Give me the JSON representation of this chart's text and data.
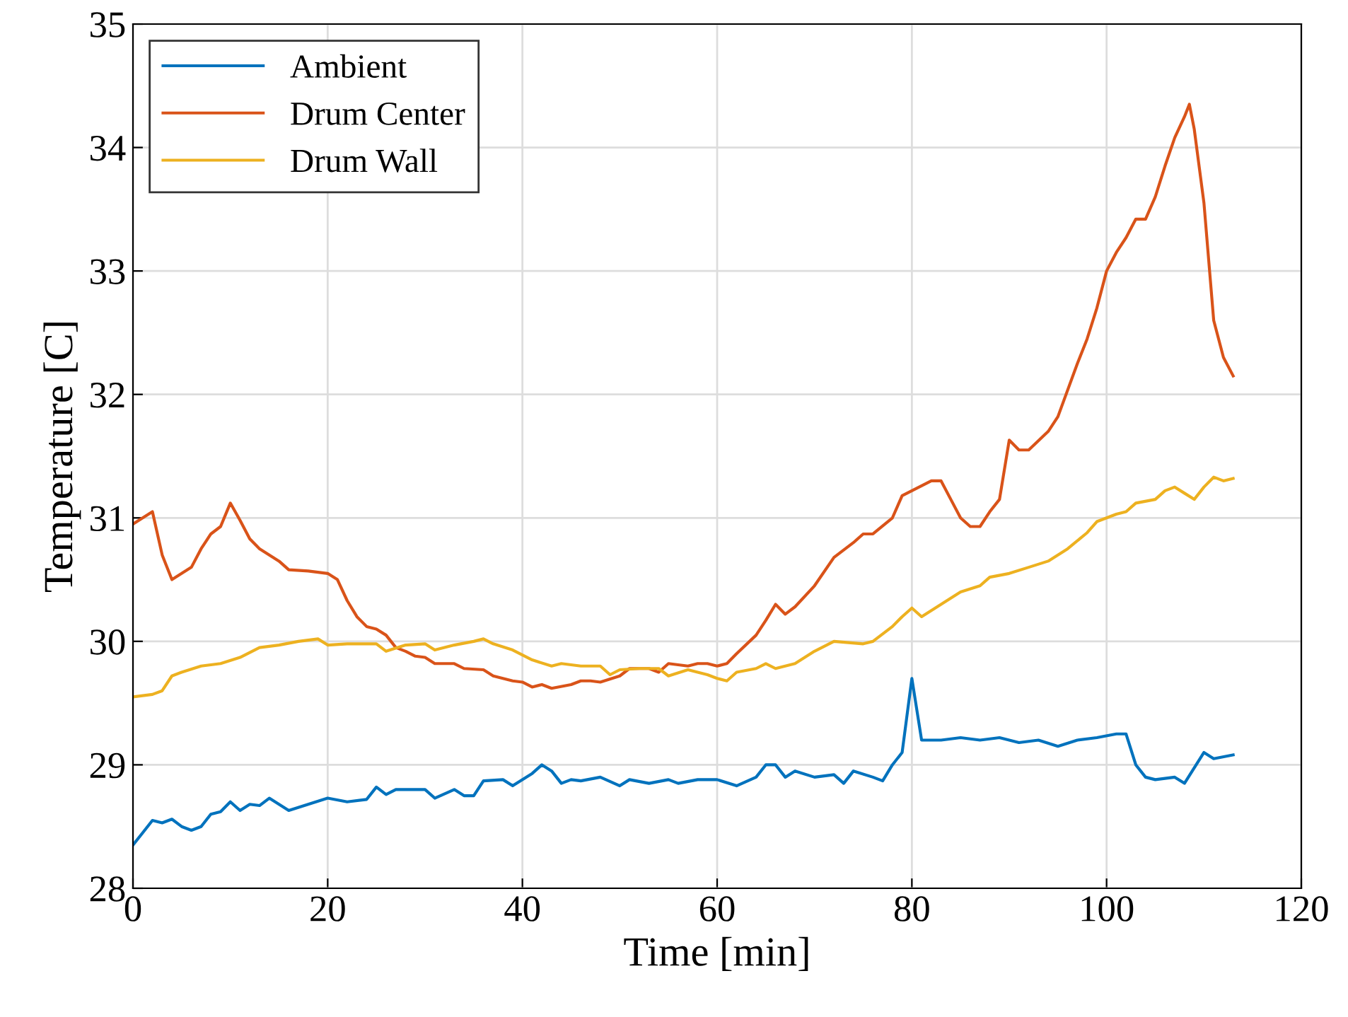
{
  "chart_data": {
    "type": "line",
    "xlabel": "Time [min]",
    "ylabel": "Temperature [C]",
    "xlim": [
      0,
      120
    ],
    "xticks": [
      0,
      20,
      40,
      60,
      80,
      100,
      120
    ],
    "ylim": [
      28,
      35
    ],
    "yticks": [
      28,
      29,
      30,
      31,
      32,
      33,
      34,
      35
    ],
    "grid": true,
    "legend": "top left",
    "marker": "none",
    "line_style": "solid",
    "series": [
      {
        "name": "Ambient",
        "color": "#0072bd",
        "x": [
          0,
          1,
          2,
          3,
          4,
          5,
          6,
          7,
          8,
          9,
          10,
          11,
          12,
          13,
          14,
          16,
          18,
          20,
          22,
          24,
          25,
          26,
          27,
          30,
          31,
          33,
          34,
          35,
          36,
          38,
          39,
          41,
          42,
          43,
          44,
          45,
          46,
          48,
          50,
          51,
          53,
          55,
          56,
          58,
          60,
          62,
          64,
          65,
          66,
          67,
          68,
          70,
          72,
          73,
          74,
          76,
          77,
          78,
          79,
          80,
          81,
          83,
          85,
          87,
          89,
          91,
          93,
          95,
          97,
          99,
          101,
          102,
          103,
          104,
          105,
          107,
          108,
          110,
          111,
          113
        ],
        "values": [
          28.35,
          28.45,
          28.55,
          28.53,
          28.56,
          28.5,
          28.47,
          28.5,
          28.6,
          28.62,
          28.7,
          28.63,
          28.68,
          28.67,
          28.73,
          28.63,
          28.68,
          28.73,
          28.7,
          28.72,
          28.82,
          28.76,
          28.8,
          28.8,
          28.73,
          28.8,
          28.75,
          28.75,
          28.87,
          28.88,
          28.83,
          28.93,
          29.0,
          28.95,
          28.85,
          28.88,
          28.87,
          28.9,
          28.83,
          28.88,
          28.85,
          28.88,
          28.85,
          28.88,
          28.88,
          28.83,
          28.9,
          29.0,
          29.0,
          28.9,
          28.95,
          28.9,
          28.92,
          28.85,
          28.95,
          28.9,
          28.87,
          29.0,
          29.1,
          29.7,
          29.2,
          29.2,
          29.22,
          29.2,
          29.22,
          29.18,
          29.2,
          29.15,
          29.2,
          29.22,
          29.25,
          29.25,
          29.0,
          28.9,
          28.88,
          28.9,
          28.85,
          29.1,
          29.05,
          29.08
        ]
      },
      {
        "name": "Drum Center",
        "color": "#d95319",
        "x": [
          0,
          1,
          2,
          3,
          4,
          5,
          6,
          7,
          8,
          9,
          10,
          11,
          12,
          13,
          14,
          15,
          16,
          18,
          19,
          20,
          21,
          22,
          23,
          24,
          25,
          26,
          27,
          28,
          29,
          30,
          31,
          33,
          34,
          36,
          37,
          39,
          40,
          41,
          42,
          43,
          45,
          46,
          47,
          48,
          50,
          51,
          53,
          54,
          55,
          57,
          58,
          59,
          60,
          61,
          62,
          64,
          65,
          66,
          67,
          68,
          70,
          72,
          74,
          75,
          76,
          78,
          79,
          80,
          82,
          83,
          84,
          85,
          86,
          87,
          88,
          89,
          90,
          91,
          92,
          94,
          95,
          97,
          98,
          99,
          100,
          101,
          102,
          103,
          104,
          105,
          106,
          107,
          108,
          108.5,
          109,
          110,
          111,
          112,
          113
        ],
        "values": [
          30.95,
          31.0,
          31.05,
          30.7,
          30.5,
          30.55,
          30.6,
          30.75,
          30.87,
          30.93,
          31.12,
          30.98,
          30.83,
          30.75,
          30.7,
          30.65,
          30.58,
          30.57,
          30.56,
          30.55,
          30.5,
          30.33,
          30.2,
          30.12,
          30.1,
          30.05,
          29.95,
          29.92,
          29.88,
          29.87,
          29.82,
          29.82,
          29.78,
          29.77,
          29.72,
          29.68,
          29.67,
          29.63,
          29.65,
          29.62,
          29.65,
          29.68,
          29.68,
          29.67,
          29.72,
          29.78,
          29.78,
          29.75,
          29.82,
          29.8,
          29.82,
          29.82,
          29.8,
          29.82,
          29.9,
          30.05,
          30.17,
          30.3,
          30.22,
          30.28,
          30.45,
          30.68,
          30.8,
          30.87,
          30.87,
          31.0,
          31.18,
          31.22,
          31.3,
          31.3,
          31.15,
          31.0,
          30.93,
          30.93,
          31.05,
          31.15,
          31.63,
          31.55,
          31.55,
          31.7,
          31.82,
          32.25,
          32.45,
          32.7,
          33.0,
          33.15,
          33.27,
          33.42,
          33.42,
          33.6,
          33.85,
          34.08,
          34.25,
          34.35,
          34.15,
          33.55,
          32.6,
          32.3,
          32.15
        ]
      },
      {
        "name": "Drum Wall",
        "color": "#edb120",
        "x": [
          0,
          2,
          3,
          4,
          5,
          7,
          9,
          11,
          13,
          15,
          17,
          19,
          20,
          22,
          24,
          25,
          26,
          28,
          30,
          31,
          33,
          35,
          36,
          37,
          39,
          41,
          43,
          44,
          46,
          48,
          49,
          50,
          52,
          54,
          55,
          57,
          59,
          60,
          61,
          62,
          64,
          65,
          66,
          68,
          70,
          72,
          75,
          76,
          78,
          79,
          80,
          81,
          83,
          85,
          87,
          88,
          90,
          92,
          94,
          96,
          98,
          99,
          101,
          102,
          103,
          105,
          106,
          107,
          108,
          109,
          110,
          111,
          112,
          113
        ],
        "values": [
          29.55,
          29.57,
          29.6,
          29.72,
          29.75,
          29.8,
          29.82,
          29.87,
          29.95,
          29.97,
          30.0,
          30.02,
          29.97,
          29.98,
          29.98,
          29.98,
          29.92,
          29.97,
          29.98,
          29.93,
          29.97,
          30.0,
          30.02,
          29.98,
          29.93,
          29.85,
          29.8,
          29.82,
          29.8,
          29.8,
          29.73,
          29.77,
          29.78,
          29.78,
          29.72,
          29.77,
          29.73,
          29.7,
          29.68,
          29.75,
          29.78,
          29.82,
          29.78,
          29.82,
          29.92,
          30.0,
          29.98,
          30.0,
          30.12,
          30.2,
          30.27,
          30.2,
          30.3,
          30.4,
          30.45,
          30.52,
          30.55,
          30.6,
          30.65,
          30.75,
          30.88,
          30.97,
          31.03,
          31.05,
          31.12,
          31.15,
          31.22,
          31.25,
          31.2,
          31.15,
          31.25,
          31.33,
          31.3,
          31.32
        ]
      }
    ]
  }
}
